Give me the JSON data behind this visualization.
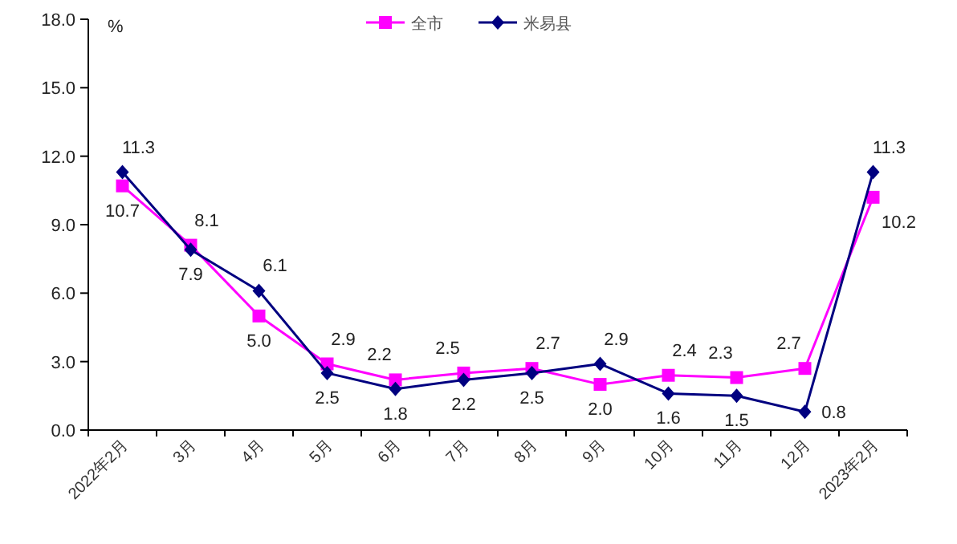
{
  "chart_data": {
    "type": "line",
    "ylabel": "%",
    "categories": [
      "2022年2月",
      "3月",
      "4月",
      "5月",
      "6月",
      "7月",
      "8月",
      "9月",
      "10月",
      "11月",
      "12月",
      "2023年2月"
    ],
    "series": [
      {
        "name": "全市",
        "color": "#ff00ff",
        "marker": "square",
        "values": [
          10.7,
          8.1,
          5.0,
          2.9,
          2.2,
          2.5,
          2.7,
          2.0,
          2.4,
          2.3,
          2.7,
          10.2
        ],
        "value_labels": [
          "10.7",
          "8.1",
          "5.0",
          "2.9",
          "2.2",
          "2.5",
          "2.7",
          "2.0",
          "2.4",
          "2.3",
          "2.7",
          "10.2"
        ]
      },
      {
        "name": "米易县",
        "color": "#000080",
        "marker": "diamond",
        "values": [
          11.3,
          7.9,
          6.1,
          2.5,
          1.8,
          2.2,
          2.5,
          2.9,
          1.6,
          1.5,
          0.8,
          11.3
        ],
        "value_labels": [
          "11.3",
          "7.9",
          "6.1",
          "2.5",
          "1.8",
          "2.2",
          "2.5",
          "2.9",
          "1.6",
          "1.5",
          "0.8",
          "11.3"
        ]
      }
    ],
    "ylim": [
      0,
      18
    ],
    "yticks": [
      {
        "value": 0,
        "label": "0.0"
      },
      {
        "value": 3,
        "label": "3.0"
      },
      {
        "value": 6,
        "label": "6.0"
      },
      {
        "value": 9,
        "label": "9.0"
      },
      {
        "value": 12,
        "label": "12.0"
      },
      {
        "value": 15,
        "label": "15.0"
      },
      {
        "value": 18,
        "label": "18.0"
      }
    ],
    "legend": "top",
    "grid": false,
    "line_style": "solid"
  }
}
